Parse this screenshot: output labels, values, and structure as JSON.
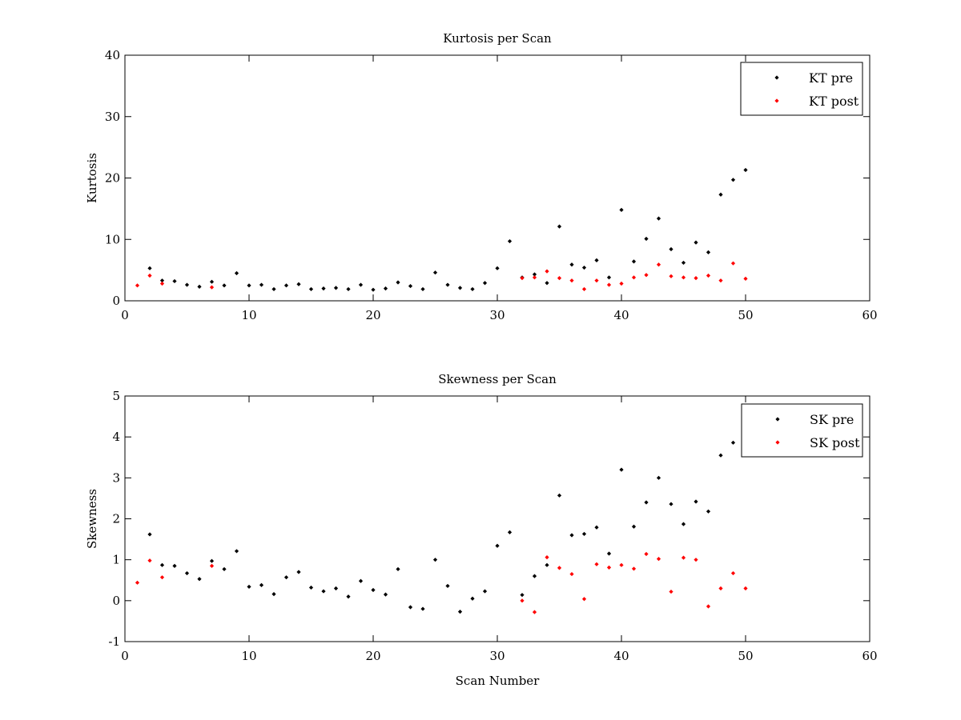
{
  "chart_data": [
    {
      "type": "scatter",
      "title": "Kurtosis per Scan",
      "xlabel": "",
      "ylabel": "Kurtosis",
      "xlim": [
        0,
        60
      ],
      "ylim": [
        0,
        40
      ],
      "xticks": [
        0,
        10,
        20,
        30,
        40,
        50,
        60
      ],
      "yticks": [
        0,
        10,
        20,
        30,
        40
      ],
      "grid": false,
      "legend_position": "top-right",
      "series": [
        {
          "name": "KT pre",
          "color": "#000000",
          "x": [
            2,
            3,
            4,
            5,
            6,
            7,
            8,
            9,
            10,
            11,
            12,
            13,
            14,
            15,
            16,
            17,
            18,
            19,
            20,
            21,
            22,
            23,
            24,
            25,
            26,
            27,
            28,
            29,
            30,
            31,
            32,
            33,
            34,
            35,
            36,
            37,
            38,
            39,
            40,
            41,
            42,
            43,
            44,
            45,
            46,
            47,
            48,
            49,
            50
          ],
          "y": [
            5.3,
            3.3,
            3.2,
            2.6,
            2.3,
            3.1,
            2.5,
            4.5,
            2.5,
            2.6,
            1.9,
            2.5,
            2.7,
            1.9,
            2.0,
            2.1,
            1.9,
            2.6,
            1.8,
            2.0,
            3.0,
            2.4,
            1.9,
            4.6,
            2.6,
            2.1,
            1.9,
            2.9,
            5.3,
            9.7,
            3.8,
            4.3,
            2.9,
            12.1,
            5.9,
            5.4,
            6.6,
            3.8,
            14.8,
            6.4,
            10.1,
            13.4,
            8.4,
            6.2,
            9.5,
            7.9,
            17.3,
            19.7,
            21.3
          ]
        },
        {
          "name": "KT post",
          "color": "#ff0000",
          "x": [
            1,
            2,
            3,
            7,
            32,
            33,
            34,
            35,
            36,
            37,
            38,
            39,
            40,
            41,
            42,
            43,
            44,
            45,
            46,
            47,
            48,
            49,
            50
          ],
          "y": [
            2.5,
            4.1,
            2.8,
            2.2,
            3.7,
            3.8,
            4.8,
            3.7,
            3.3,
            1.9,
            3.3,
            2.6,
            2.8,
            3.8,
            4.2,
            5.9,
            4.0,
            3.8,
            3.7,
            4.1,
            3.3,
            6.1,
            3.6
          ]
        }
      ]
    },
    {
      "type": "scatter",
      "title": "Skewness per Scan",
      "xlabel": "Scan Number",
      "ylabel": "Skewness",
      "xlim": [
        0,
        60
      ],
      "ylim": [
        -1,
        5
      ],
      "xticks": [
        0,
        10,
        20,
        30,
        40,
        50,
        60
      ],
      "yticks": [
        -1,
        0,
        1,
        2,
        3,
        4,
        5
      ],
      "grid": false,
      "legend_position": "top-right",
      "series": [
        {
          "name": "SK pre",
          "color": "#000000",
          "x": [
            2,
            3,
            4,
            5,
            6,
            7,
            8,
            9,
            10,
            11,
            12,
            13,
            14,
            15,
            16,
            17,
            18,
            19,
            20,
            21,
            22,
            23,
            24,
            25,
            26,
            27,
            28,
            29,
            30,
            31,
            32,
            33,
            34,
            35,
            36,
            37,
            38,
            39,
            40,
            41,
            42,
            43,
            44,
            45,
            46,
            47,
            48,
            49
          ],
          "y": [
            1.62,
            0.87,
            0.85,
            0.67,
            0.53,
            0.97,
            0.77,
            1.21,
            0.34,
            0.38,
            0.16,
            0.57,
            0.7,
            0.32,
            0.23,
            0.3,
            0.1,
            0.48,
            0.26,
            0.15,
            0.77,
            -0.16,
            -0.2,
            1.0,
            0.36,
            -0.27,
            0.05,
            0.23,
            1.34,
            1.67,
            0.14,
            0.6,
            0.87,
            2.57,
            1.6,
            1.63,
            1.79,
            1.15,
            3.2,
            1.81,
            2.4,
            3.0,
            2.36,
            1.87,
            2.42,
            2.18,
            3.55,
            3.86
          ]
        },
        {
          "name": "SK post",
          "color": "#ff0000",
          "x": [
            1,
            2,
            3,
            7,
            32,
            33,
            34,
            35,
            36,
            37,
            38,
            39,
            40,
            41,
            42,
            43,
            44,
            45,
            46,
            47,
            48,
            49,
            50
          ],
          "y": [
            0.44,
            0.98,
            0.57,
            0.85,
            0.0,
            -0.28,
            1.06,
            0.8,
            0.65,
            0.04,
            0.89,
            0.81,
            0.87,
            0.78,
            1.14,
            1.02,
            0.22,
            1.05,
            1.0,
            -0.14,
            0.3,
            0.67,
            0.3
          ]
        }
      ]
    }
  ]
}
